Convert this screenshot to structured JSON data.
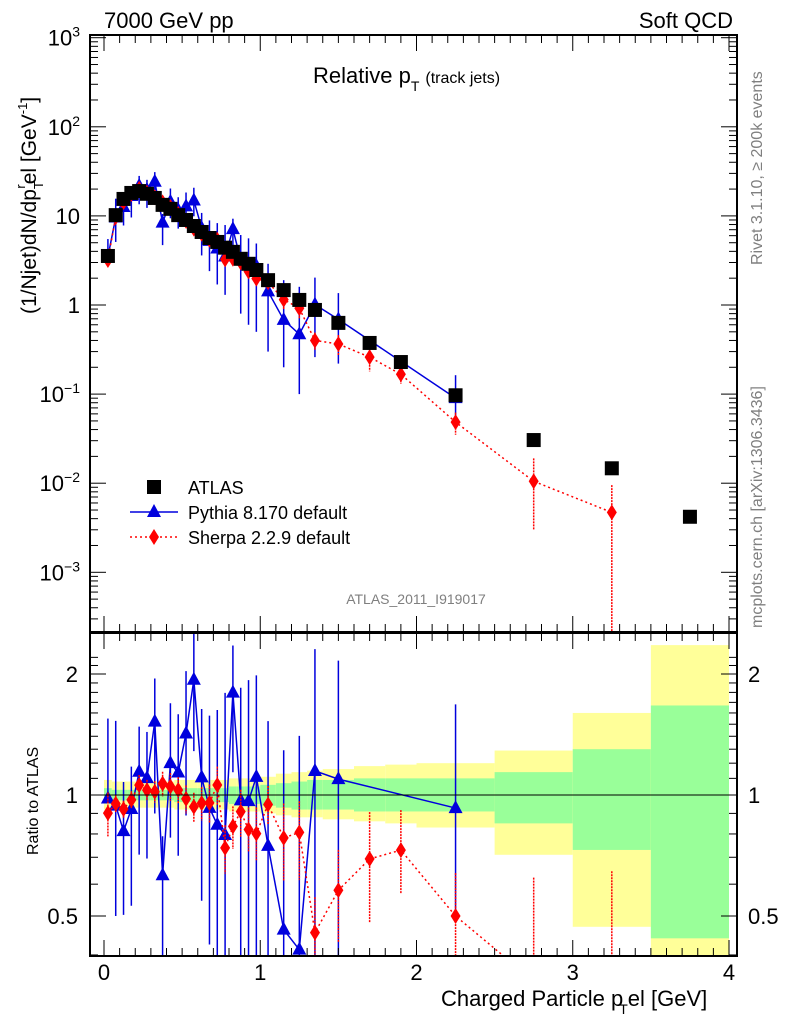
{
  "header": {
    "left": "7000 GeV pp",
    "right": "Soft QCD"
  },
  "side_labels": {
    "rivet": "Rivet 3.1.10, ≥ 200k events",
    "mcplots": "mcplots.cern.ch [arXiv:1306.3436]"
  },
  "chart_data": [
    {
      "type": "scatter",
      "panel": "main",
      "title_main": "Relative p",
      "title_sub": "T",
      "title_extra": "(track jets)",
      "xlabel": "Charged Particle p",
      "xlabel_sub": "T",
      "xlabel_suffix": "el [GeV]",
      "ylabel": "(1/Njet)dN/dp",
      "ylabel_sub": "T",
      "ylabel_sup": "r",
      "ylabel_suffix": "el [GeV",
      "ylabel_unit_sup": "-1",
      "ylabel_close": "]",
      "yscale": "log",
      "xlim": [
        -0.09,
        4.08
      ],
      "ylim": [
        0.00021,
        1000
      ],
      "ytick_labels": [
        {
          "v": 1000,
          "base": "10",
          "exp": "3"
        },
        {
          "v": 100,
          "base": "10",
          "exp": "2"
        },
        {
          "v": 10,
          "base": "10",
          "exp": ""
        },
        {
          "v": 1,
          "base": "1",
          "exp": ""
        },
        {
          "v": 0.1,
          "base": "10",
          "exp": "−1"
        },
        {
          "v": 0.01,
          "base": "10",
          "exp": "−2"
        },
        {
          "v": 0.001,
          "base": "10",
          "exp": "−3"
        }
      ],
      "analysis_id": "ATLAS_2011_I919017",
      "legend": [
        {
          "name": "ATLAS",
          "color": "#000000",
          "marker": "square",
          "line": "none"
        },
        {
          "name": "Pythia 8.170 default",
          "color": "#0000dd",
          "marker": "triangle",
          "line": "solid"
        },
        {
          "name": "Sherpa 2.2.9 default",
          "color": "#ff0000",
          "marker": "diamond",
          "line": "dotted"
        }
      ],
      "legend_position": "lower-left",
      "x": [
        0.025,
        0.075,
        0.125,
        0.175,
        0.225,
        0.275,
        0.325,
        0.375,
        0.425,
        0.475,
        0.525,
        0.575,
        0.625,
        0.675,
        0.725,
        0.775,
        0.825,
        0.875,
        0.925,
        0.975,
        1.05,
        1.15,
        1.25,
        1.35,
        1.5,
        1.7,
        1.9,
        2.25,
        2.75,
        3.25,
        3.75
      ],
      "series": [
        {
          "name": "ATLAS",
          "values": [
            3.55,
            10.2,
            15.5,
            18.1,
            19.0,
            17.7,
            15.9,
            13.3,
            12.0,
            10.2,
            9.0,
            7.7,
            6.6,
            5.65,
            5.1,
            4.4,
            3.95,
            3.3,
            2.9,
            2.47,
            1.9,
            1.47,
            1.14,
            0.88,
            0.63,
            0.375,
            0.229,
            0.097,
            0.0305,
            0.0147,
            0.0042
          ]
        },
        {
          "name": "Pythia 8.170 default",
          "values": [
            3.48,
            9.6,
            12.6,
            16.7,
            21.7,
            19.5,
            24.2,
            8.4,
            14.4,
            11.6,
            12.8,
            14.9,
            7.3,
            5.25,
            4.3,
            3.5,
            7.1,
            3.2,
            2.8,
            2.74,
            1.42,
            0.68,
            0.47,
            1.01,
            0.69,
            null,
            null,
            0.09,
            null,
            null,
            null
          ],
          "err_low": [
            3.48,
            5.1,
            7.8,
            9.6,
            13.5,
            12.3,
            14.3,
            4.7,
            9.4,
            7.2,
            8.0,
            9.9,
            3.6,
            2.4,
            1.7,
            1.3,
            4.5,
            0.8,
            0.6,
            0.5,
            0.3,
            0.2,
            0.1,
            0.26,
            0.22,
            null,
            null,
            0.05,
            null,
            null,
            null
          ],
          "err_high": [
            5.5,
            15.6,
            16.7,
            21.3,
            28.1,
            25.4,
            31.0,
            10.5,
            20.3,
            16.2,
            18.3,
            20.7,
            10.8,
            8.9,
            8.3,
            7.9,
            9.3,
            6.1,
            5.6,
            4.9,
            2.9,
            1.9,
            1.6,
            2.03,
            1.36,
            null,
            null,
            0.163,
            null,
            null,
            null
          ]
        },
        {
          "name": "Sherpa 2.2.9 default",
          "values": [
            3.2,
            9.7,
            14.3,
            17.6,
            20.1,
            18.2,
            16.2,
            14.2,
            12.6,
            10.5,
            8.8,
            7.2,
            6.3,
            5.4,
            5.4,
            3.25,
            3.3,
            3.0,
            2.38,
            1.98,
            1.8,
            1.15,
            0.92,
            0.4,
            0.365,
            0.26,
            0.167,
            0.0485,
            0.0105,
            0.0047,
            null
          ],
          "err_low": [
            2.8,
            9.2,
            13.6,
            16.7,
            18.9,
            17.1,
            15.2,
            13.2,
            11.6,
            9.7,
            8.1,
            6.6,
            5.7,
            4.8,
            4.8,
            2.8,
            2.9,
            2.6,
            2.1,
            1.7,
            1.6,
            0.9,
            0.7,
            0.31,
            0.27,
            0.18,
            0.13,
            0.035,
            0.003,
            0.0002,
            null
          ],
          "err_high": [
            3.6,
            10.2,
            15.0,
            18.5,
            21.3,
            19.3,
            17.2,
            15.2,
            13.6,
            11.3,
            9.5,
            7.8,
            6.9,
            6.0,
            6.0,
            3.7,
            3.7,
            3.4,
            2.7,
            2.3,
            2.0,
            1.4,
            1.1,
            0.49,
            0.46,
            0.34,
            0.21,
            0.062,
            0.019,
            0.0095,
            null
          ]
        }
      ]
    },
    {
      "type": "scatter",
      "panel": "ratio",
      "ylabel": "Ratio to ATLAS",
      "yscale": "log",
      "ylim": [
        0.36,
        2.25
      ],
      "ytick_labels": [
        {
          "v": 2,
          "label": "2"
        },
        {
          "v": 1,
          "label": "1"
        },
        {
          "v": 0.5,
          "label": "0.5"
        }
      ],
      "xtick_labels": [
        "0",
        "1",
        "2",
        "3",
        "4"
      ],
      "bands": {
        "stat_color": "#99ff99",
        "total_color": "#ffff99",
        "edges": [
          0,
          0.05,
          0.1,
          0.15,
          0.2,
          0.25,
          0.3,
          0.35,
          0.4,
          0.45,
          0.5,
          0.55,
          0.6,
          0.65,
          0.7,
          0.75,
          0.8,
          0.85,
          0.9,
          0.95,
          1.0,
          1.1,
          1.2,
          1.3,
          1.4,
          1.6,
          1.8,
          2.0,
          2.5,
          3.0,
          3.5,
          4.0
        ],
        "green_low": [
          0.96,
          0.97,
          0.97,
          0.97,
          0.97,
          0.97,
          0.97,
          0.97,
          0.97,
          0.96,
          0.96,
          0.96,
          0.96,
          0.96,
          0.96,
          0.96,
          0.95,
          0.95,
          0.95,
          0.95,
          0.94,
          0.93,
          0.92,
          0.92,
          0.92,
          0.91,
          0.91,
          0.91,
          0.85,
          0.73,
          0.44
        ],
        "green_high": [
          1.04,
          1.03,
          1.03,
          1.03,
          1.03,
          1.03,
          1.03,
          1.03,
          1.03,
          1.04,
          1.04,
          1.04,
          1.04,
          1.04,
          1.04,
          1.04,
          1.05,
          1.05,
          1.05,
          1.05,
          1.06,
          1.07,
          1.08,
          1.09,
          1.09,
          1.1,
          1.1,
          1.1,
          1.14,
          1.3,
          1.67
        ],
        "yellow_low": [
          0.92,
          0.93,
          0.93,
          0.93,
          0.93,
          0.93,
          0.93,
          0.93,
          0.93,
          0.92,
          0.92,
          0.92,
          0.92,
          0.92,
          0.92,
          0.92,
          0.91,
          0.91,
          0.91,
          0.91,
          0.9,
          0.89,
          0.88,
          0.88,
          0.87,
          0.86,
          0.85,
          0.83,
          0.71,
          0.47,
          0.3
        ],
        "yellow_high": [
          1.09,
          1.08,
          1.08,
          1.08,
          1.08,
          1.08,
          1.08,
          1.08,
          1.08,
          1.09,
          1.09,
          1.09,
          1.09,
          1.09,
          1.09,
          1.09,
          1.1,
          1.1,
          1.1,
          1.1,
          1.11,
          1.13,
          1.14,
          1.15,
          1.16,
          1.18,
          1.19,
          1.2,
          1.29,
          1.6,
          2.36
        ]
      },
      "reference_line": 1
    }
  ]
}
